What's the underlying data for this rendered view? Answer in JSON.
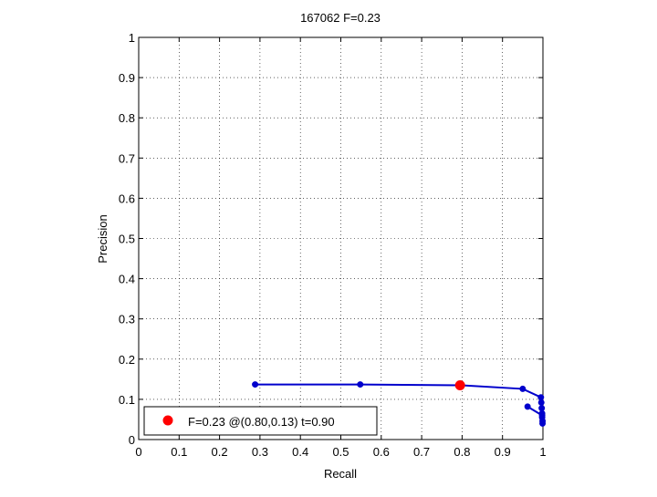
{
  "chart_data": {
    "type": "line",
    "title": "167062 F=0.23",
    "xlabel": "Recall",
    "ylabel": "Precision",
    "xlim": [
      0,
      1
    ],
    "ylim": [
      0,
      1
    ],
    "xticks": [
      0,
      0.1,
      0.2,
      0.3,
      0.4,
      0.5,
      0.6,
      0.7,
      0.8,
      0.9,
      1
    ],
    "xtick_labels": [
      "0",
      "0.1",
      "0.2",
      "0.3",
      "0.4",
      "0.5",
      "0.6",
      "0.7",
      "0.8",
      "0.9",
      "1"
    ],
    "yticks": [
      0,
      0.1,
      0.2,
      0.3,
      0.4,
      0.5,
      0.6,
      0.7,
      0.8,
      0.9,
      1
    ],
    "ytick_labels": [
      "0",
      "0.1",
      "0.2",
      "0.3",
      "0.4",
      "0.5",
      "0.6",
      "0.7",
      "0.8",
      "0.9",
      "1"
    ],
    "grid": true,
    "legend_position": "bottom-left",
    "series": [
      {
        "color": "#0000cc",
        "x": [
          0.288,
          0.548,
          0.795,
          0.95,
          0.995,
          0.996,
          0.997,
          0.998,
          0.998,
          0.999,
          0.999
        ],
        "y": [
          0.137,
          0.137,
          0.135,
          0.126,
          0.105,
          0.092,
          0.078,
          0.065,
          0.055,
          0.046,
          0.04
        ]
      },
      {
        "color": "#0000cc",
        "x": [
          0.962,
          0.998
        ],
        "y": [
          0.082,
          0.06
        ]
      }
    ],
    "best_point": {
      "x": 0.795,
      "y": 0.135,
      "color": "#ff0000",
      "legend_label": "F=0.23 @(0.80,0.13) t=0.90"
    }
  }
}
